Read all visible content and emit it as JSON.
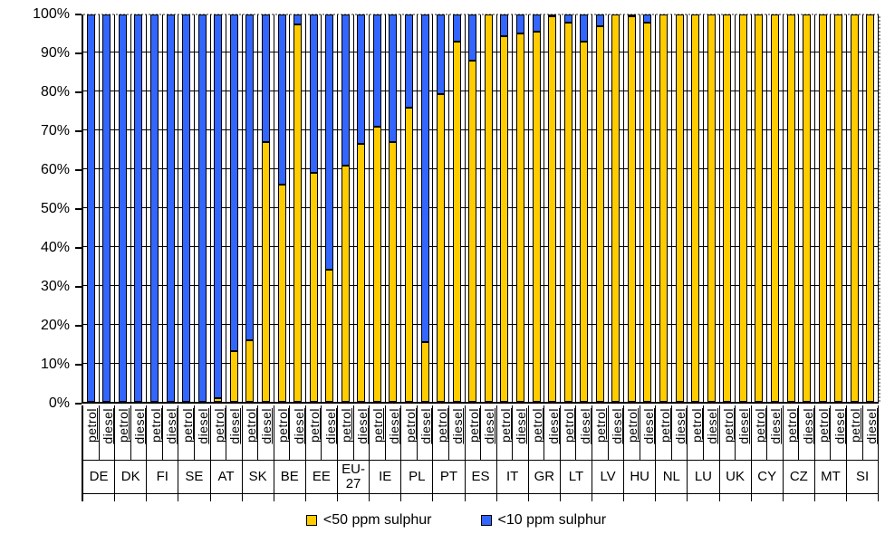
{
  "chart_data": {
    "type": "bar",
    "stacked": true,
    "orientation": "vertical",
    "unit": "%",
    "title": "",
    "xlabel": "",
    "ylabel": "",
    "ylim": [
      0,
      100
    ],
    "y_ticks": [
      "0%",
      "10%",
      "20%",
      "30%",
      "40%",
      "50%",
      "60%",
      "70%",
      "80%",
      "90%",
      "100%"
    ],
    "grid": true,
    "legend_position": "bottom",
    "categories": [
      "DE",
      "DK",
      "FI",
      "SE",
      "AT",
      "SK",
      "BE",
      "EE",
      "EU-27",
      "IE",
      "PL",
      "PT",
      "ES",
      "IT",
      "GR",
      "LT",
      "LV",
      "HU",
      "NL",
      "LU",
      "UK",
      "CY",
      "CZ",
      "MT",
      "SI"
    ],
    "subcategories": [
      "petrol",
      "diesel"
    ],
    "bar_order": "for each category: petrol bar then diesel bar (50 bars total)",
    "series": [
      {
        "name": "<50 ppm sulphur",
        "color": "#FFCC00",
        "values": [
          0,
          0,
          0,
          0,
          0,
          0,
          0,
          0,
          1,
          13,
          16,
          67,
          56,
          97.5,
          59,
          34,
          61,
          66.5,
          71,
          67,
          76,
          15.5,
          79.5,
          93,
          88,
          100,
          94.5,
          95,
          95.5,
          99.5,
          98,
          93,
          97,
          100,
          99.5,
          98,
          100,
          100,
          100,
          100,
          100,
          100,
          100,
          100,
          100,
          100,
          100,
          100,
          100,
          100
        ]
      },
      {
        "name": "<10 ppm sulphur",
        "color": "#3366FF",
        "values": [
          100,
          100,
          100,
          100,
          100,
          100,
          100,
          100,
          99,
          87,
          84,
          33,
          44,
          2.5,
          41,
          66,
          39,
          33.5,
          29,
          33,
          24,
          84.5,
          20.5,
          7,
          12,
          0,
          5.5,
          5,
          4.5,
          0.5,
          2,
          7,
          3,
          0,
          0.5,
          2,
          0,
          0,
          0,
          0,
          0,
          0,
          0,
          0,
          0,
          0,
          0,
          0,
          0,
          0
        ]
      }
    ]
  },
  "legend": {
    "items": [
      {
        "label": "<50 ppm sulphur",
        "color": "#FFCC00"
      },
      {
        "label": "<10 ppm sulphur",
        "color": "#3366FF"
      }
    ]
  }
}
